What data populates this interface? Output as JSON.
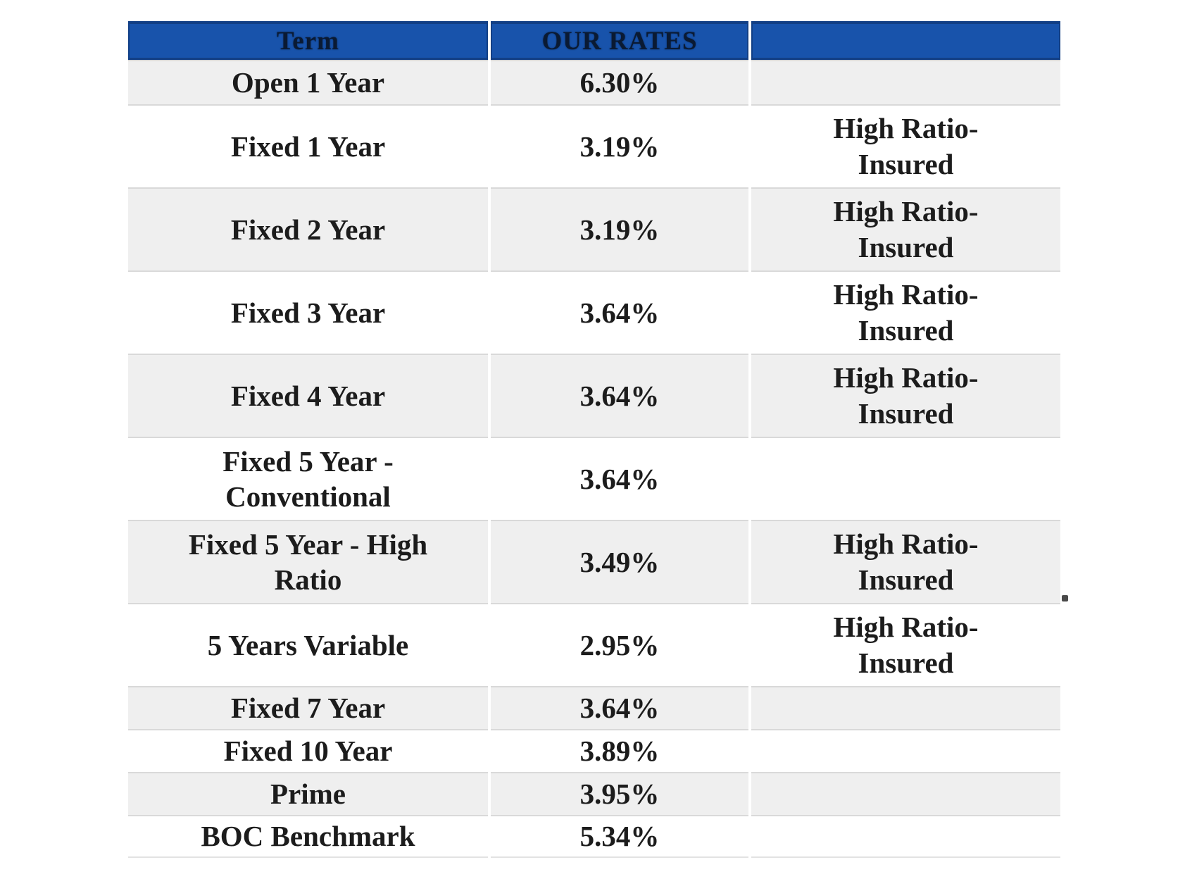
{
  "table": {
    "headers": {
      "term": "Term",
      "rates": "OUR RATES",
      "note": ""
    },
    "rows": [
      {
        "term": "Open 1 Year",
        "rate": "6.30%",
        "note": ""
      },
      {
        "term": "Fixed 1 Year",
        "rate": "3.19%",
        "note": "High Ratio-Insured"
      },
      {
        "term": "Fixed 2 Year",
        "rate": "3.19%",
        "note": "High Ratio-Insured"
      },
      {
        "term": "Fixed 3 Year",
        "rate": "3.64%",
        "note": "High Ratio-Insured"
      },
      {
        "term": "Fixed 4 Year",
        "rate": "3.64%",
        "note": "High Ratio-Insured"
      },
      {
        "term": "Fixed 5 Year - Conventional",
        "rate": "3.64%",
        "note": ""
      },
      {
        "term": "Fixed 5 Year - High Ratio",
        "rate": "3.49%",
        "note": "High Ratio-Insured"
      },
      {
        "term": "5 Years Variable",
        "rate": "2.95%",
        "note": "High Ratio-Insured"
      },
      {
        "term": "Fixed 7 Year",
        "rate": "3.64%",
        "note": ""
      },
      {
        "term": "Fixed 10 Year",
        "rate": "3.89%",
        "note": ""
      },
      {
        "term": "Prime",
        "rate": "3.95%",
        "note": ""
      },
      {
        "term": "BOC Benchmark",
        "rate": "5.34%",
        "note": ""
      }
    ]
  },
  "colors": {
    "header_bg": "#1853ab",
    "header_border": "#123f85",
    "header_text": "#0a1a33",
    "row_alt_bg": "#efefef",
    "row_bg": "#ffffff",
    "body_text": "#1c1c1c",
    "separator": "#d9d9d9"
  },
  "chart_data": {
    "type": "table",
    "columns": [
      "Term",
      "OUR RATES",
      ""
    ],
    "terms": [
      "Open 1 Year",
      "Fixed 1 Year",
      "Fixed 2 Year",
      "Fixed 3 Year",
      "Fixed 4 Year",
      "Fixed 5 Year - Conventional",
      "Fixed 5 Year - High Ratio",
      "5 Years Variable",
      "Fixed 7 Year",
      "Fixed 10 Year",
      "Prime",
      "BOC Benchmark"
    ],
    "rates_percent": [
      6.3,
      3.19,
      3.19,
      3.64,
      3.64,
      3.64,
      3.49,
      2.95,
      3.64,
      3.89,
      3.95,
      5.34
    ],
    "notes": [
      "",
      "High Ratio-Insured",
      "High Ratio-Insured",
      "High Ratio-Insured",
      "High Ratio-Insured",
      "",
      "High Ratio-Insured",
      "High Ratio-Insured",
      "",
      "",
      "",
      ""
    ],
    "layout": {
      "header_row": true,
      "alternating_rows": true,
      "grid": "light-gray horizontal separators, white column gaps"
    }
  }
}
